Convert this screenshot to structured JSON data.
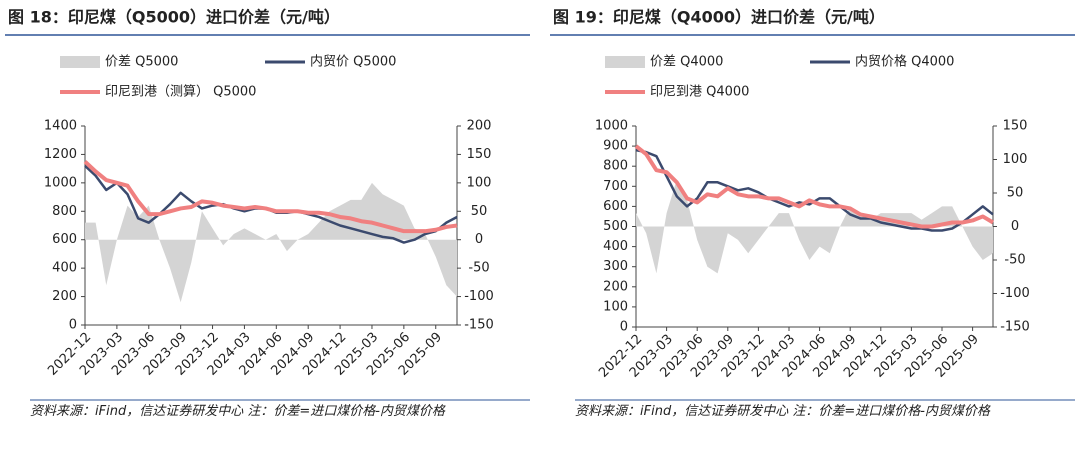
{
  "chart_data": [
    {
      "type": "line",
      "title": "图 18：印尼煤（Q5000）进口价差（元/吨）",
      "note": "资料来源：iFind，信达证券研发中心 注：价差=进口煤价格-内贸煤价格",
      "x": [
        "2022-12",
        "2023-01",
        "2023-02",
        "2023-03",
        "2023-04",
        "2023-05",
        "2023-06",
        "2023-07",
        "2023-08",
        "2023-09",
        "2023-10",
        "2023-11",
        "2023-12",
        "2024-01",
        "2024-02",
        "2024-03",
        "2024-04",
        "2024-05",
        "2024-06",
        "2024-07",
        "2024-08",
        "2024-09",
        "2024-10",
        "2024-11",
        "2024-12",
        "2025-01",
        "2025-02",
        "2025-03",
        "2025-04",
        "2025-05",
        "2025-06",
        "2025-07",
        "2025-08",
        "2025-09",
        "2025-10",
        "2025-11"
      ],
      "xticks": [
        "2022-12",
        "2023-03",
        "2023-06",
        "2023-09",
        "2023-12",
        "2024-03",
        "2024-06",
        "2024-09",
        "2024-12",
        "2025-03",
        "2025-06",
        "2025-09"
      ],
      "ylim": [
        0,
        1400
      ],
      "yticks": [
        0,
        200,
        400,
        600,
        800,
        1000,
        1200,
        1400
      ],
      "y2lim": [
        -150,
        200
      ],
      "y2ticks": [
        -150,
        -100,
        -50,
        0,
        50,
        100,
        150,
        200
      ],
      "series": [
        {
          "name": "价差 Q5000",
          "type": "area",
          "axis": "y2",
          "color": "#d4d4d4",
          "values": [
            30,
            30,
            -80,
            0,
            60,
            40,
            60,
            0,
            -50,
            -110,
            -40,
            50,
            20,
            -10,
            10,
            20,
            10,
            0,
            10,
            -20,
            0,
            10,
            30,
            50,
            60,
            70,
            70,
            100,
            80,
            70,
            60,
            20,
            10,
            -30,
            -80,
            -100
          ]
        },
        {
          "name": "内贸价 Q5000",
          "type": "line",
          "color": "#3b4a6e",
          "values": [
            1120,
            1050,
            950,
            1000,
            920,
            750,
            720,
            780,
            850,
            930,
            870,
            820,
            840,
            850,
            820,
            800,
            820,
            820,
            790,
            790,
            800,
            780,
            760,
            730,
            700,
            680,
            660,
            640,
            620,
            610,
            580,
            600,
            640,
            660,
            720,
            760
          ]
        },
        {
          "name": "印尼到港（测算） Q5000",
          "type": "line",
          "color": "#f08080",
          "values": [
            1150,
            1080,
            1020,
            1000,
            980,
            870,
            780,
            780,
            800,
            820,
            830,
            870,
            860,
            840,
            830,
            820,
            830,
            820,
            800,
            800,
            800,
            790,
            790,
            780,
            760,
            750,
            730,
            720,
            700,
            680,
            660,
            660,
            660,
            670,
            690,
            700
          ]
        }
      ]
    },
    {
      "type": "line",
      "title": "图 19：印尼煤（Q4000）进口价差（元/吨）",
      "note": "资料来源：iFind，信达证券研发中心 注：价差=进口煤价格-内贸煤价格",
      "x": [
        "2022-12",
        "2023-01",
        "2023-02",
        "2023-03",
        "2023-04",
        "2023-05",
        "2023-06",
        "2023-07",
        "2023-08",
        "2023-09",
        "2023-10",
        "2023-11",
        "2023-12",
        "2024-01",
        "2024-02",
        "2024-03",
        "2024-04",
        "2024-05",
        "2024-06",
        "2024-07",
        "2024-08",
        "2024-09",
        "2024-10",
        "2024-11",
        "2024-12",
        "2025-01",
        "2025-02",
        "2025-03",
        "2025-04",
        "2025-05",
        "2025-06",
        "2025-07",
        "2025-08",
        "2025-09",
        "2025-10",
        "2025-11"
      ],
      "xticks": [
        "2022-12",
        "2023-03",
        "2023-06",
        "2023-09",
        "2023-12",
        "2024-03",
        "2024-06",
        "2024-09",
        "2024-12",
        "2025-03",
        "2025-06",
        "2025-09"
      ],
      "ylim": [
        0,
        1000
      ],
      "yticks": [
        0,
        100,
        200,
        300,
        400,
        500,
        600,
        700,
        800,
        900,
        1000
      ],
      "y2lim": [
        -150,
        150
      ],
      "y2ticks": [
        -150,
        -100,
        -50,
        0,
        50,
        100,
        150
      ],
      "series": [
        {
          "name": "价差 Q4000",
          "type": "area",
          "axis": "y2",
          "color": "#d4d4d4",
          "values": [
            20,
            -10,
            -70,
            20,
            70,
            40,
            -20,
            -60,
            -70,
            -10,
            -20,
            -40,
            -20,
            0,
            20,
            20,
            -20,
            -50,
            -30,
            -40,
            0,
            30,
            20,
            10,
            20,
            20,
            20,
            20,
            10,
            20,
            30,
            30,
            0,
            -30,
            -50,
            -40
          ]
        },
        {
          "name": "内贸价格 Q4000",
          "type": "line",
          "color": "#3b4a6e",
          "values": [
            880,
            870,
            850,
            750,
            650,
            600,
            640,
            720,
            720,
            700,
            680,
            690,
            670,
            640,
            620,
            600,
            620,
            610,
            640,
            640,
            600,
            560,
            540,
            540,
            520,
            510,
            500,
            490,
            490,
            480,
            480,
            490,
            520,
            560,
            600,
            560
          ]
        },
        {
          "name": "印尼到港 Q4000",
          "type": "line",
          "color": "#f08080",
          "values": [
            900,
            860,
            780,
            770,
            720,
            640,
            620,
            660,
            650,
            690,
            660,
            650,
            650,
            640,
            640,
            620,
            600,
            630,
            610,
            600,
            600,
            590,
            560,
            550,
            540,
            530,
            520,
            510,
            500,
            500,
            510,
            520,
            520,
            530,
            550,
            520
          ]
        }
      ]
    }
  ]
}
